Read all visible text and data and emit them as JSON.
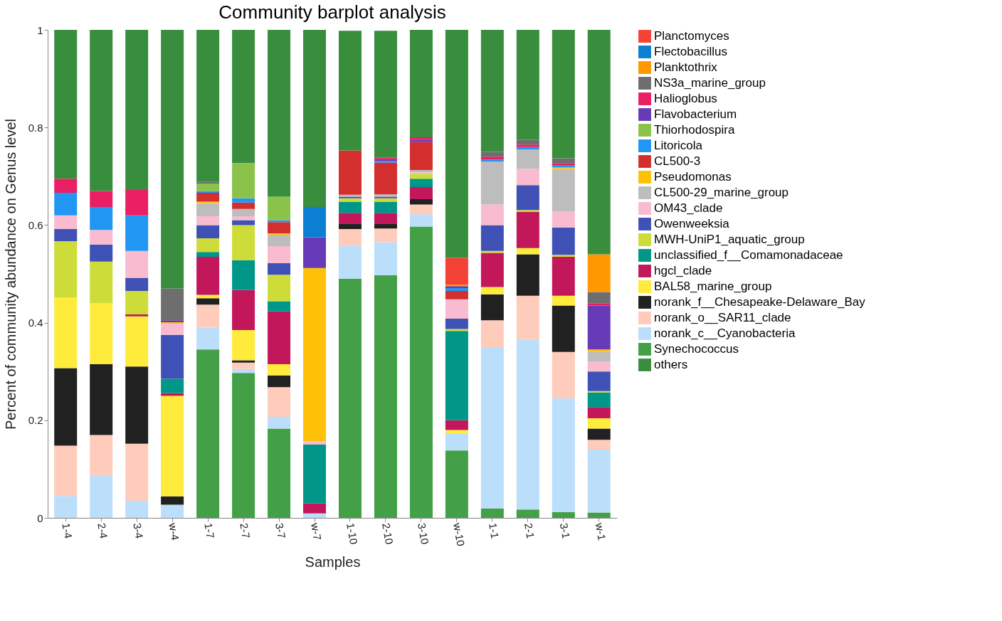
{
  "chart_data": {
    "type": "bar",
    "stacked": true,
    "title": "Community barplot analysis",
    "xlabel": "Samples",
    "ylabel": "Percent of community abundance on Genus level",
    "categories": [
      "1-4",
      "2-4",
      "3-4",
      "w-4",
      "1-7",
      "2-7",
      "3-7",
      "w-7",
      "1-10",
      "2-10",
      "3-10",
      "w-10",
      "1-1",
      "2-1",
      "3-1",
      "w-1"
    ],
    "ylim": [
      0,
      1
    ],
    "yticks": [
      0,
      0.2,
      0.4,
      0.6,
      0.8,
      1
    ],
    "grid": false,
    "legend": "right",
    "series": [
      {
        "name": "Synechococcus",
        "color": "#43a047",
        "values": [
          0,
          0,
          0,
          0,
          0.345,
          0.297,
          0.183,
          0,
          0.49,
          0.497,
          0.597,
          0.138,
          0.019,
          0.017,
          0.012,
          0.011
        ]
      },
      {
        "name": "norank_c__Cyanobacteria",
        "color": "#bbdefb",
        "values": [
          0.045,
          0.087,
          0.035,
          0.027,
          0.045,
          0.008,
          0.024,
          0.009,
          0.068,
          0.068,
          0.025,
          0.034,
          0.331,
          0.348,
          0.233,
          0.129
        ]
      },
      {
        "name": "norank_o__SAR11_clade",
        "color": "#ffccbc",
        "values": [
          0.103,
          0.083,
          0.117,
          0,
          0.047,
          0.013,
          0.061,
          0,
          0.034,
          0.028,
          0.02,
          0,
          0.055,
          0.09,
          0.095,
          0.02
        ]
      },
      {
        "name": "norank_f__Chesapeake-Delaware_Bay",
        "color": "#212121",
        "values": [
          0.159,
          0.145,
          0.158,
          0.017,
          0.013,
          0.005,
          0.024,
          0,
          0.011,
          0.01,
          0.011,
          0,
          0.053,
          0.085,
          0.095,
          0.023
        ]
      },
      {
        "name": "BAL58_marine_group",
        "color": "#ffeb3b",
        "values": [
          0.145,
          0.125,
          0.103,
          0.206,
          0.007,
          0.062,
          0.023,
          0,
          0,
          0,
          0,
          0.008,
          0.015,
          0.013,
          0.02,
          0.021
        ]
      },
      {
        "name": "hgcl_clade",
        "color": "#c2185b",
        "values": [
          0,
          0,
          0.004,
          0.006,
          0.078,
          0.082,
          0.108,
          0.021,
          0.022,
          0.022,
          0.025,
          0.02,
          0.07,
          0.074,
          0.08,
          0.023
        ]
      },
      {
        "name": "unclassified_f__Comamonadaceae",
        "color": "#009688",
        "values": [
          0,
          0,
          0,
          0.029,
          0.01,
          0.061,
          0.021,
          0.12,
          0.023,
          0.023,
          0.017,
          0.183,
          0,
          0,
          0,
          0.03
        ]
      },
      {
        "name": "MWH-UniP1_aquatic_group",
        "color": "#cddc39",
        "values": [
          0.115,
          0.085,
          0.048,
          0,
          0.028,
          0.072,
          0.054,
          0,
          0.007,
          0.007,
          0.01,
          0.004,
          0.004,
          0.004,
          0.004,
          0.003
        ]
      },
      {
        "name": "Owenweeksia",
        "color": "#3f51b5",
        "values": [
          0.025,
          0.035,
          0.027,
          0.09,
          0.027,
          0.01,
          0.024,
          0,
          0.003,
          0.003,
          0,
          0.021,
          0.053,
          0.051,
          0.056,
          0.04
        ]
      },
      {
        "name": "OM43_clade",
        "color": "#f8bbd0",
        "values": [
          0.028,
          0.03,
          0.055,
          0.023,
          0.018,
          0.008,
          0.035,
          0.007,
          null,
          null,
          0.003,
          0.04,
          0.042,
          0.033,
          0.033,
          0.02
        ]
      },
      {
        "name": "CL500-29_marine_group",
        "color": "#bdbdbd",
        "values": [
          0,
          0,
          0,
          0,
          0.027,
          0.015,
          0.023,
          0,
          0.004,
          0.005,
          0.005,
          0,
          0.088,
          0.04,
          0.087,
          0.02
        ]
      },
      {
        "name": "Pseudomonas",
        "color": "#ffc107",
        "values": [
          0,
          0,
          0,
          0.003,
          0.003,
          0,
          0.003,
          0.355,
          0,
          0,
          0,
          0,
          0,
          0,
          0.003,
          0.005
        ]
      },
      {
        "name": "CL500-3",
        "color": "#d32f2f",
        "values": [
          0,
          0,
          0,
          0,
          0.018,
          0.013,
          0.023,
          0,
          0.091,
          0.065,
          0.057,
          0.017,
          0,
          0,
          0,
          0
        ]
      },
      {
        "name": "Litoricola",
        "color": "#2196f3",
        "values": [
          0.046,
          0.047,
          0.073,
          0,
          0.004,
          0.009,
          0.004,
          0,
          0,
          0.003,
          0,
          0.006,
          0.004,
          0.005,
          0.004,
          0
        ]
      },
      {
        "name": "Thiorhodospira",
        "color": "#8bc34a",
        "values": [
          0,
          0,
          0,
          0,
          0.015,
          0.072,
          0.048,
          0,
          0,
          0,
          0,
          0,
          0,
          0,
          0,
          0
        ]
      },
      {
        "name": "Flavobacterium",
        "color": "#673ab7",
        "values": [
          0,
          0,
          0,
          0.004,
          0,
          0,
          0,
          0.063,
          0,
          0.004,
          0.005,
          0.004,
          0,
          0,
          0,
          0.09
        ]
      },
      {
        "name": "Halioglobus",
        "color": "#e91e63",
        "values": [
          0.029,
          0.033,
          0.052,
          0,
          0,
          0,
          0,
          0,
          0,
          0.003,
          0.005,
          0,
          0.006,
          0.005,
          0.005,
          0.005
        ]
      },
      {
        "name": "NS3a_marine_group",
        "color": "#6e6e6e",
        "values": [
          0,
          0,
          0,
          0.065,
          0.004,
          0,
          0,
          0,
          0,
          0,
          0,
          0,
          0.01,
          0.01,
          0.01,
          0.023
        ]
      },
      {
        "name": "Planktothrix",
        "color": "#ff9800",
        "values": [
          0,
          0,
          0,
          0,
          0,
          0,
          0,
          0,
          0,
          0,
          0,
          0.003,
          0,
          0,
          0,
          0.077
        ]
      },
      {
        "name": "Flectobacillus",
        "color": "#0b7fd1",
        "values": [
          0,
          0,
          0,
          0,
          0,
          0,
          0,
          0.062,
          0,
          0,
          0,
          0,
          0,
          0,
          0,
          0
        ]
      },
      {
        "name": "Planctomyces",
        "color": "#f44336",
        "values": [
          0,
          0,
          0,
          0,
          0,
          0,
          0,
          0,
          0,
          0,
          0,
          0.055,
          0,
          0,
          0,
          0
        ]
      },
      {
        "name": "others",
        "color": "#388e3c",
        "values": [
          0.305,
          0.33,
          0.328,
          0.53,
          0.311,
          0.273,
          0.342,
          0.363,
          0.245,
          0.26,
          0.22,
          0.467,
          0.25,
          0.225,
          0.263,
          0.46
        ]
      }
    ]
  }
}
